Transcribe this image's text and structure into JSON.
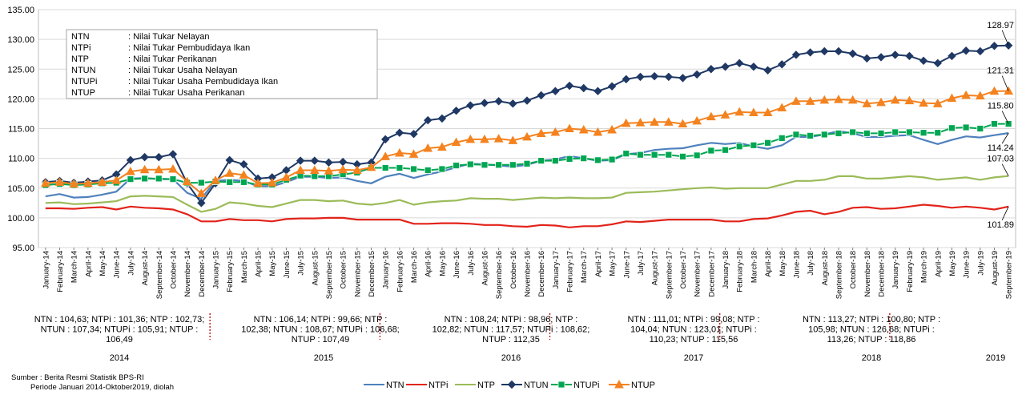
{
  "chart_data": {
    "type": "line",
    "title": "",
    "xlabel": "",
    "ylabel": "",
    "ylim": [
      95,
      135
    ],
    "yticks": [
      "95.00",
      "100.00",
      "105.00",
      "110.00",
      "115.00",
      "120.00",
      "125.00",
      "130.00",
      "135.00"
    ],
    "grid": true,
    "legend_position": "bottom",
    "x": [
      "January-14",
      "February-14",
      "March-14",
      "April-14",
      "May-14",
      "June-14",
      "July-14",
      "August-14",
      "September-14",
      "October-14",
      "November-14",
      "December-14",
      "January-15",
      "February-15",
      "March-15",
      "April-15",
      "May-15",
      "June-15",
      "July-15",
      "August-15",
      "September-15",
      "October-15",
      "November-15",
      "December-15",
      "January-16",
      "February-16",
      "March-16",
      "April-16",
      "May-16",
      "June-16",
      "July-16",
      "August-16",
      "September-16",
      "October-16",
      "November-16",
      "December-16",
      "January-17",
      "February-17",
      "March-17",
      "April-17",
      "May-17",
      "June-17",
      "July-17",
      "August-17",
      "September-17",
      "October-17",
      "November-17",
      "December-17",
      "January-18",
      "February-18",
      "March-18",
      "April-18",
      "May-18",
      "June-18",
      "July-18",
      "August-18",
      "September-18",
      "October-18",
      "November-18",
      "December-18",
      "January-19",
      "February-19",
      "March-19",
      "April-19",
      "May-19",
      "June-19",
      "July-19",
      "August-19",
      "September-19"
    ],
    "series": [
      {
        "name": "NTN",
        "color": "#4f81bd",
        "marker": "none",
        "values": [
          103.6,
          104.0,
          103.4,
          103.5,
          103.9,
          104.4,
          106.6,
          106.7,
          106.5,
          106.5,
          104.2,
          103.2,
          106.2,
          106.4,
          106.2,
          105.3,
          105.3,
          106.0,
          106.9,
          106.9,
          106.7,
          106.8,
          106.2,
          105.8,
          106.9,
          107.4,
          106.7,
          107.3,
          107.8,
          108.5,
          109.1,
          109.0,
          108.8,
          108.6,
          108.9,
          109.6,
          109.8,
          110.4,
          110.0,
          109.6,
          109.7,
          110.7,
          110.9,
          111.4,
          111.6,
          111.7,
          112.2,
          112.6,
          112.4,
          112.6,
          112.0,
          111.6,
          112.2,
          113.6,
          113.6,
          114.0,
          114.6,
          114.2,
          113.6,
          113.6,
          113.8,
          113.9,
          113.1,
          112.4,
          113.1,
          113.7,
          113.5,
          113.9,
          114.24
        ]
      },
      {
        "name": "NTPi",
        "color": "#e2231a",
        "marker": "none",
        "values": [
          101.6,
          101.6,
          101.5,
          101.7,
          101.8,
          101.4,
          101.9,
          101.7,
          101.6,
          101.4,
          100.6,
          99.4,
          99.4,
          99.8,
          99.6,
          99.6,
          99.4,
          99.8,
          99.9,
          99.9,
          100.0,
          100.0,
          99.7,
          99.7,
          99.7,
          99.7,
          99.0,
          99.0,
          99.1,
          99.1,
          99.0,
          98.8,
          98.8,
          98.6,
          98.5,
          98.8,
          98.7,
          98.4,
          98.6,
          98.6,
          98.9,
          99.4,
          99.3,
          99.5,
          99.7,
          99.7,
          99.7,
          99.7,
          99.4,
          99.4,
          99.8,
          99.9,
          100.4,
          101.0,
          101.2,
          100.6,
          101.0,
          101.7,
          101.8,
          101.5,
          101.6,
          101.9,
          102.2,
          102.0,
          101.7,
          101.9,
          101.7,
          101.4,
          101.89
        ]
      },
      {
        "name": "NTP",
        "color": "#9bbb59",
        "marker": "none",
        "values": [
          102.5,
          102.6,
          102.3,
          102.4,
          102.6,
          102.8,
          103.6,
          103.7,
          103.6,
          103.5,
          102.2,
          101.0,
          101.5,
          102.6,
          102.4,
          102.0,
          101.8,
          102.4,
          103.0,
          103.0,
          102.8,
          102.9,
          102.4,
          102.2,
          102.5,
          103.0,
          102.2,
          102.6,
          102.8,
          102.9,
          103.3,
          103.2,
          103.2,
          103.0,
          103.2,
          103.4,
          103.3,
          103.4,
          103.3,
          103.3,
          103.4,
          104.2,
          104.3,
          104.4,
          104.6,
          104.8,
          105.0,
          105.1,
          104.9,
          105.0,
          105.0,
          105.0,
          105.6,
          106.2,
          106.2,
          106.4,
          107.0,
          107.0,
          106.6,
          106.6,
          106.8,
          107.0,
          106.8,
          106.4,
          106.6,
          106.8,
          106.4,
          106.8,
          107.03
        ]
      },
      {
        "name": "NTUN",
        "color": "#1f3864",
        "marker": "diamond",
        "values": [
          106.0,
          106.2,
          105.9,
          106.1,
          106.3,
          107.3,
          109.7,
          110.2,
          110.2,
          110.7,
          105.8,
          102.5,
          105.8,
          109.7,
          109.0,
          106.6,
          106.8,
          108.0,
          109.6,
          109.6,
          109.3,
          109.4,
          109.0,
          109.3,
          113.2,
          114.3,
          114.1,
          116.4,
          116.7,
          118.0,
          118.9,
          119.3,
          119.6,
          119.2,
          119.7,
          120.6,
          121.3,
          122.2,
          121.8,
          121.3,
          122.1,
          123.3,
          123.7,
          123.8,
          123.7,
          123.5,
          124.1,
          125.0,
          125.4,
          126.0,
          125.4,
          124.8,
          125.8,
          127.4,
          127.8,
          128.0,
          128.0,
          127.6,
          126.8,
          127.0,
          127.4,
          127.2,
          126.4,
          126.0,
          127.2,
          128.1,
          128.0,
          128.9,
          128.97
        ]
      },
      {
        "name": "NTUPi",
        "color": "#00a651",
        "marker": "square",
        "values": [
          105.5,
          105.7,
          105.5,
          105.6,
          105.8,
          105.9,
          106.5,
          106.6,
          106.6,
          106.5,
          105.9,
          105.9,
          106.1,
          106.0,
          106.0,
          105.6,
          105.6,
          106.4,
          107.1,
          107.0,
          107.0,
          107.3,
          107.6,
          108.4,
          108.4,
          108.4,
          108.2,
          108.0,
          108.2,
          108.8,
          109.0,
          108.9,
          108.9,
          108.9,
          109.1,
          109.6,
          109.6,
          109.9,
          110.0,
          109.7,
          109.8,
          110.8,
          110.6,
          110.6,
          110.6,
          110.3,
          110.5,
          111.3,
          111.4,
          112.0,
          112.2,
          112.6,
          113.4,
          114.0,
          113.8,
          114.0,
          114.2,
          114.4,
          114.2,
          114.2,
          114.4,
          114.4,
          114.3,
          114.3,
          115.1,
          115.2,
          115.0,
          115.8,
          115.8
        ]
      },
      {
        "name": "NTUP",
        "color": "#f4821f",
        "marker": "triangle",
        "values": [
          105.8,
          106.0,
          105.7,
          105.8,
          106.0,
          106.3,
          107.8,
          108.1,
          108.1,
          108.2,
          106.1,
          104.1,
          106.3,
          107.5,
          107.2,
          105.8,
          105.9,
          106.8,
          108.0,
          108.0,
          107.9,
          108.1,
          108.0,
          108.5,
          110.3,
          110.9,
          110.7,
          111.7,
          111.9,
          112.7,
          113.2,
          113.2,
          113.3,
          113.0,
          113.6,
          114.2,
          114.4,
          115.0,
          114.8,
          114.4,
          114.8,
          115.9,
          116.0,
          116.1,
          116.1,
          115.8,
          116.3,
          117.0,
          117.3,
          117.8,
          117.7,
          117.7,
          118.5,
          119.6,
          119.6,
          119.8,
          119.9,
          119.8,
          119.2,
          119.4,
          119.8,
          119.7,
          119.3,
          119.2,
          120.1,
          120.6,
          120.5,
          121.3,
          121.31
        ]
      }
    ],
    "data_labels": [
      {
        "series": "NTUN",
        "text": "128.97"
      },
      {
        "series": "NTUP",
        "text": "121.31"
      },
      {
        "series": "NTUPi",
        "text": "115.80"
      },
      {
        "series": "NTN",
        "text": "114.24"
      },
      {
        "series": "NTP",
        "text": "107.03"
      },
      {
        "series": "NTPi",
        "text": "101.89"
      }
    ],
    "definitions": [
      {
        "abbr": "NTN",
        "desc": ": Nilai Tukar Nelayan"
      },
      {
        "abbr": "NTPi",
        "desc": ": Nilai Tukar Pembudidaya Ikan"
      },
      {
        "abbr": "NTP",
        "desc": ": Nilai Tukar Perikanan"
      },
      {
        "abbr": "NTUN",
        "desc": ": Nilai Tukar Usaha Nelayan"
      },
      {
        "abbr": "NTUPi",
        "desc": ": Nilai Tukar Usaha Pembudidaya Ikan"
      },
      {
        "abbr": "NTUP",
        "desc": ": Nilai Tukar Usaha Perikanan"
      }
    ],
    "years": [
      {
        "label": "2014",
        "summary": [
          "NTN : 104,63; NTPi : 101,36; NTP : 102,73;",
          "NTUN : 107,34; NTUPi : 105,91; NTUP :",
          "106,49"
        ]
      },
      {
        "label": "2015",
        "summary": [
          "NTN : 106,14; NTPi : 99,66; NTP :",
          "102,38; NTUN : 108,67; NTUPi : 106,68;",
          "NTUP : 107,49"
        ]
      },
      {
        "label": "2016",
        "summary": [
          "NTN : 108,24; NTPi : 98,96; NTP :",
          "102,82; NTUN : 117,57; NTUPi : 108,62;",
          "NTUP : 112,35"
        ]
      },
      {
        "label": "2017",
        "summary": [
          "NTN : 111,01; NTPi : 99,08; NTP :",
          "104,04; NTUN : 123,01; NTUPi :",
          "110,23; NTUP : 115,56"
        ]
      },
      {
        "label": "2018",
        "summary": [
          "NTN : 113,27; NTPi : 100,80; NTP :",
          "105,98; NTUN : 126,68; NTUPi :",
          "113,26; NTUP : 118,86"
        ]
      },
      {
        "label": "2019",
        "summary": []
      }
    ],
    "source": [
      "Sumber : Berita Resmi Statistik BPS-RI",
      "Periode Januari 2014-Oktober2019, diolah"
    ]
  }
}
